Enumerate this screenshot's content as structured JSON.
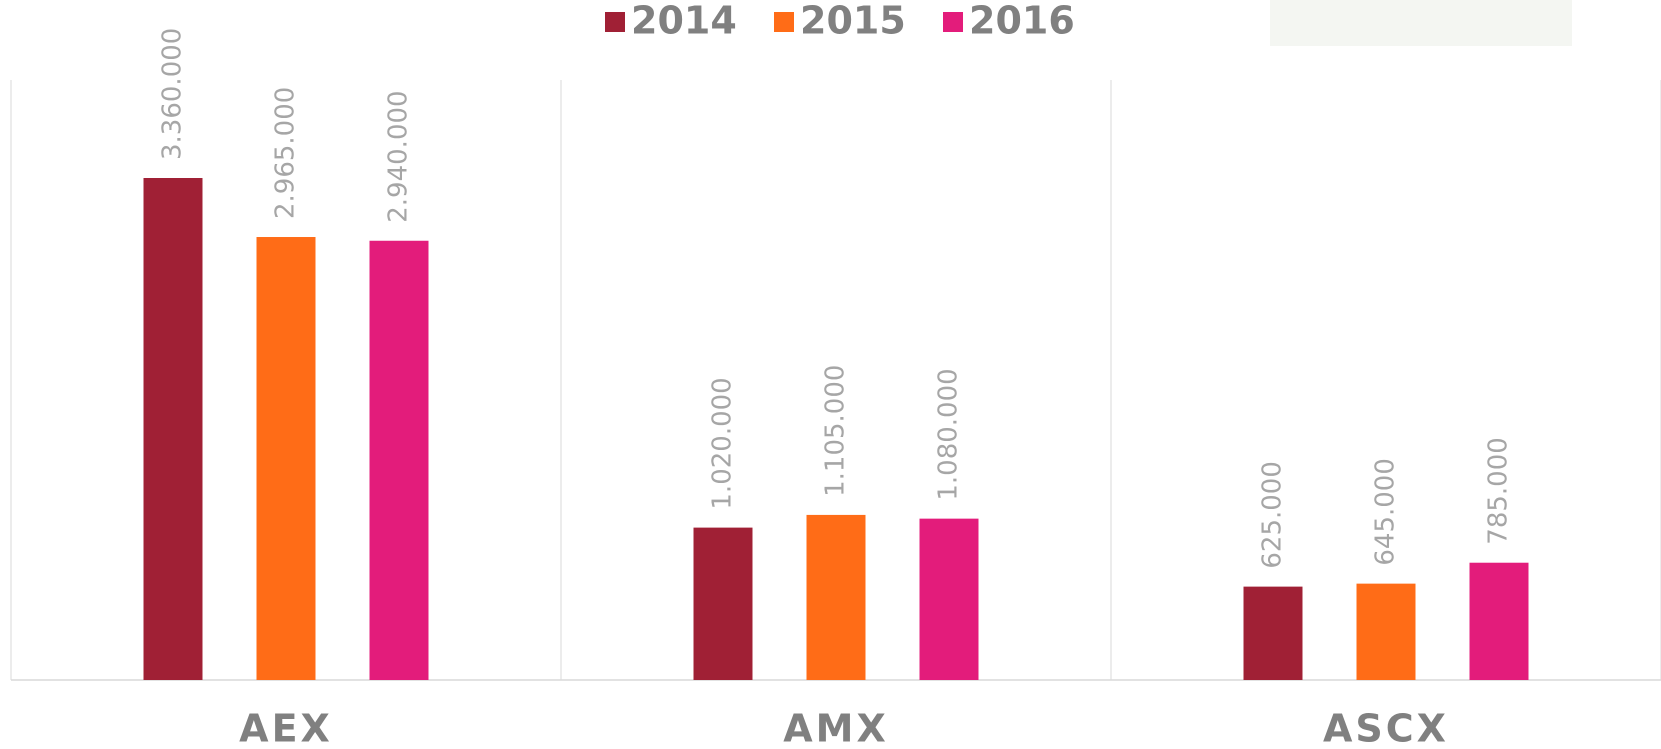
{
  "chart_data": {
    "type": "bar",
    "categories": [
      "AEX",
      "AMX",
      "ASCX"
    ],
    "series": [
      {
        "name": "2014",
        "color": "#a02035",
        "values": [
          3360000,
          1020000,
          625000
        ],
        "value_labels": [
          "3.360.000",
          "1.020.000",
          "625.000"
        ]
      },
      {
        "name": "2015",
        "color": "#ff6c17",
        "values": [
          2965000,
          1105000,
          645000
        ],
        "value_labels": [
          "2.965.000",
          "1.105.000",
          "645.000"
        ]
      },
      {
        "name": "2016",
        "color": "#e31c7b",
        "values": [
          2940000,
          1080000,
          785000
        ],
        "value_labels": [
          "2.940.000",
          "1.080.000",
          "785.000"
        ]
      }
    ]
  }
}
